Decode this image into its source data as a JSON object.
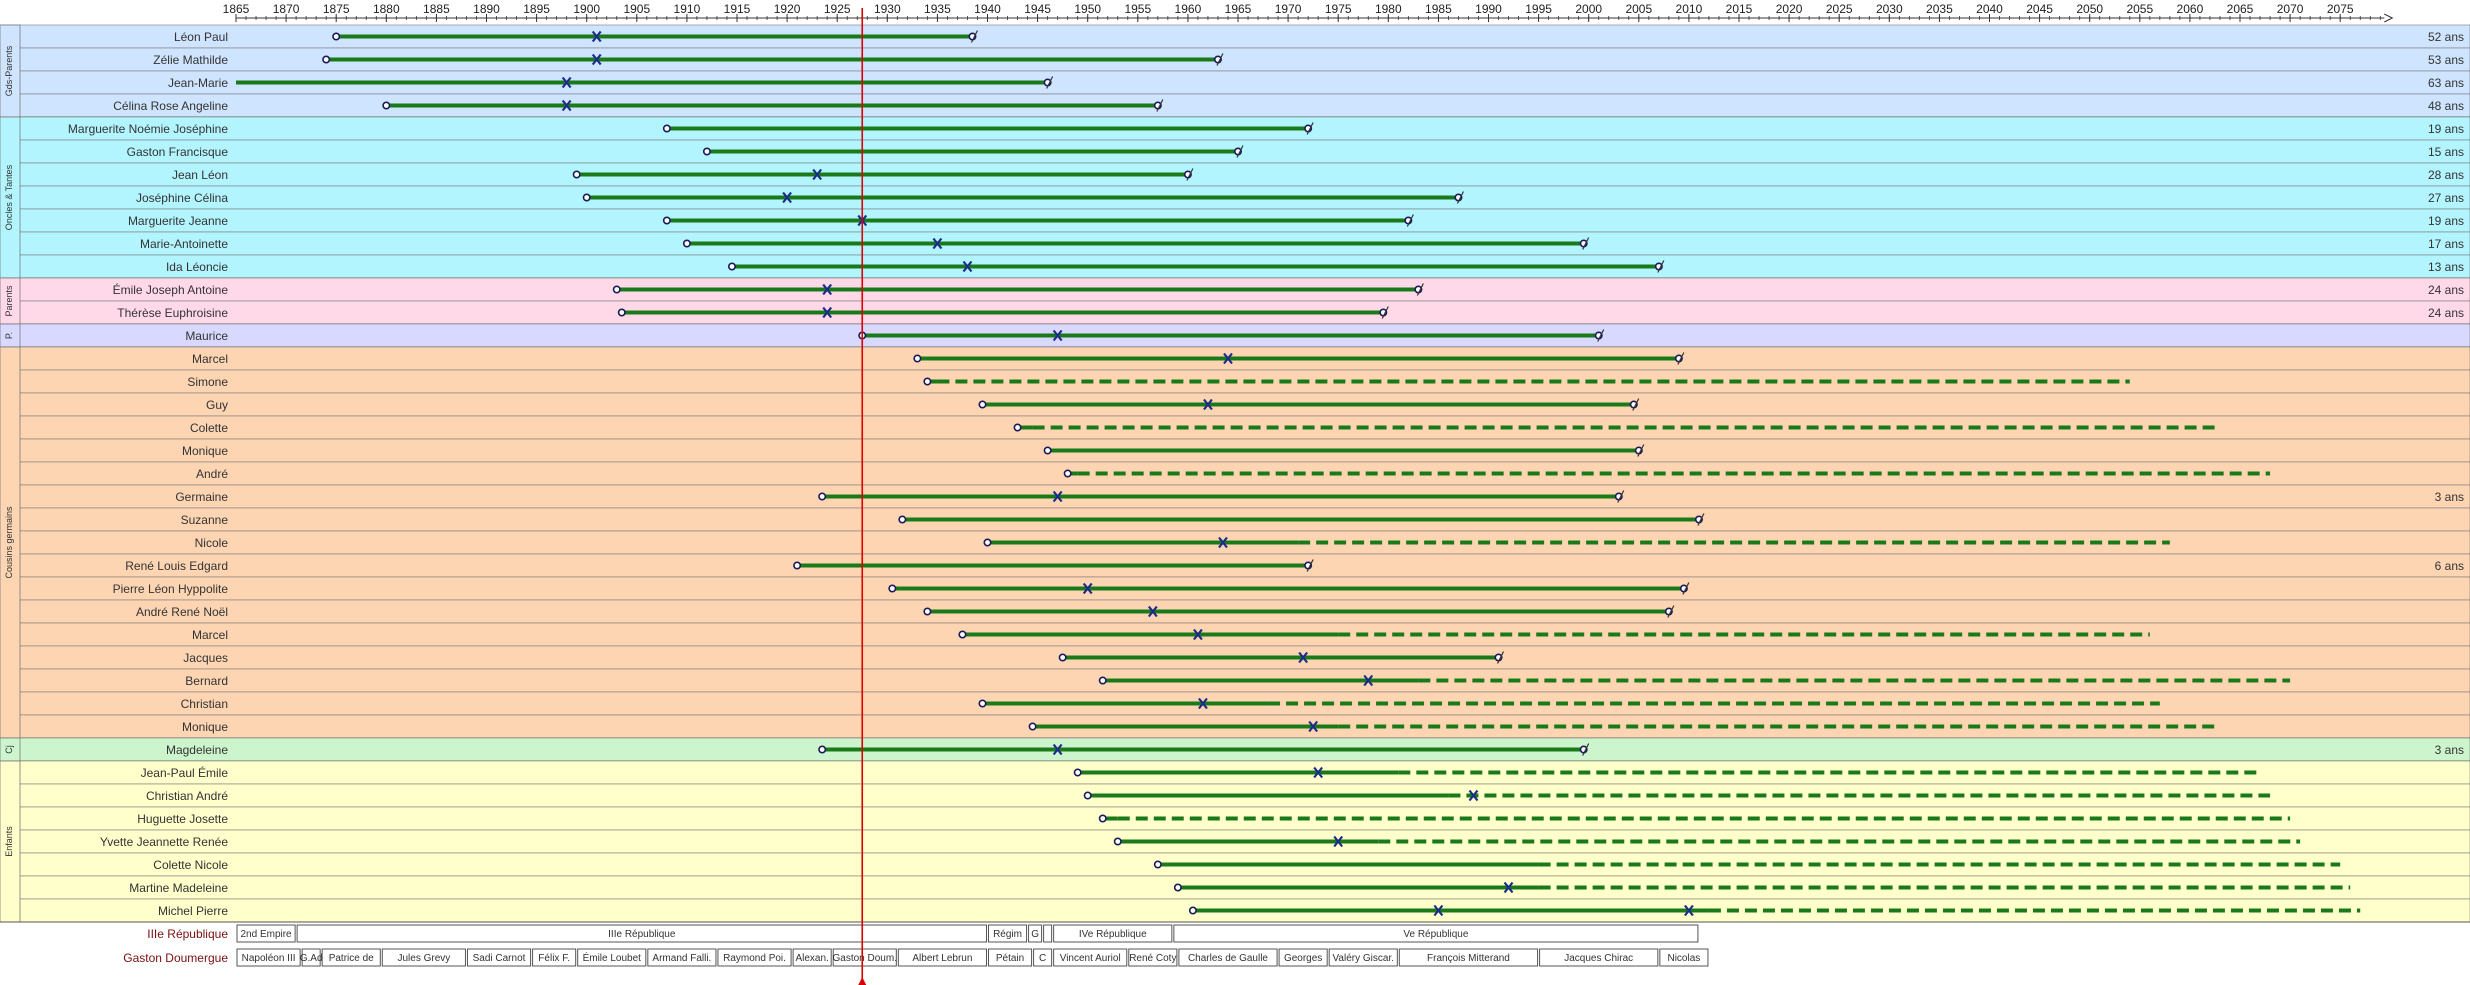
{
  "chart_data": {
    "type": "timeline",
    "x_axis": {
      "min": 1865,
      "max": 2079,
      "tick_step": 5,
      "tick_labels": [
        "1865",
        "1870",
        "1875",
        "1880",
        "1885",
        "1890",
        "1895",
        "1900",
        "1905",
        "1910",
        "1915",
        "1920",
        "1925",
        "1930",
        "1935",
        "1940",
        "1945",
        "1950",
        "1955",
        "1960",
        "1965",
        "1970",
        "1975",
        "1980",
        "1985",
        "1990",
        "1995",
        "2000",
        "2005",
        "2010",
        "2015",
        "2020",
        "2025",
        "2030",
        "2035",
        "2040",
        "2045",
        "2050",
        "2055",
        "2060",
        "2065",
        "2070",
        "2075"
      ]
    },
    "reference_year": 1927.5,
    "colors": {
      "line": "#1a7a1a",
      "reference": "#dd0000",
      "grands_parents": "#cfe4ff",
      "oncles_tantes": "#b3f5ff",
      "parents": "#ffd9e8",
      "p": "#d9d9ff",
      "cousins": "#fdd5b3",
      "cj": "#cdf5cd",
      "enfants": "#ffffcc"
    },
    "groups": [
      {
        "label": "Gds-Parents",
        "color": "grands_parents",
        "people": [
          {
            "name": "Léon Paul",
            "birth": 1875,
            "death": 1938.5,
            "cross": 1901,
            "age_label": "52 ans"
          },
          {
            "name": "Zélie Mathilde",
            "birth": 1874,
            "death": 1963,
            "cross": 1901,
            "age_label": "53 ans"
          },
          {
            "name": "Jean-Marie",
            "birth": 1865,
            "death": 1946,
            "cross": 1898,
            "age_label": "63 ans",
            "open_start": true
          },
          {
            "name": "Célina Rose Angeline",
            "birth": 1880,
            "death": 1957,
            "cross": 1898,
            "age_label": "48 ans"
          }
        ]
      },
      {
        "label": "Oncles & Tantes",
        "color": "oncles_tantes",
        "people": [
          {
            "name": "Marguerite Noémie Joséphine",
            "birth": 1908,
            "death": 1972,
            "age_label": "19 ans"
          },
          {
            "name": "Gaston Francisque",
            "birth": 1912,
            "death": 1965,
            "age_label": "15 ans"
          },
          {
            "name": "Jean Léon",
            "birth": 1899,
            "death": 1960,
            "cross": 1923,
            "age_label": "28 ans"
          },
          {
            "name": "Joséphine Célina",
            "birth": 1900,
            "death": 1987,
            "cross": 1920,
            "age_label": "27 ans"
          },
          {
            "name": "Marguerite Jeanne",
            "birth": 1908,
            "death": 1982,
            "cross": 1927.5,
            "age_label": "19 ans"
          },
          {
            "name": "Marie-Antoinette",
            "birth": 1910,
            "death": 1999.5,
            "cross": 1935,
            "age_label": "17 ans"
          },
          {
            "name": "Ida Léoncie",
            "birth": 1914.5,
            "death": 2007,
            "cross": 1938,
            "age_label": "13 ans"
          }
        ]
      },
      {
        "label": "Parents",
        "color": "parents",
        "people": [
          {
            "name": "Émile Joseph Antoine",
            "birth": 1903,
            "death": 1983,
            "cross": 1924,
            "age_label": "24 ans"
          },
          {
            "name": "Thérèse Euphroisine",
            "birth": 1903.5,
            "death": 1979.5,
            "cross": 1924,
            "age_label": "24 ans"
          }
        ]
      },
      {
        "label": "P.",
        "color": "p",
        "people": [
          {
            "name": "Maurice",
            "birth": 1927.5,
            "death": 2001,
            "cross": 1947
          }
        ]
      },
      {
        "label": "Cousins germains",
        "color": "cousins",
        "people": [
          {
            "name": "Marcel",
            "birth": 1933,
            "death": 2009,
            "cross": 1964
          },
          {
            "name": "Simone",
            "birth": 1934,
            "dash_start": 1935,
            "dash_end": 2054
          },
          {
            "name": "Guy",
            "birth": 1939.5,
            "death": 2004.5,
            "cross": 1962
          },
          {
            "name": "Colette",
            "birth": 1943,
            "dash_start": 1944.5,
            "dash_end": 2063
          },
          {
            "name": "Monique",
            "birth": 1946,
            "death": 2005
          },
          {
            "name": "André",
            "birth": 1948,
            "dash_start": 1949,
            "dash_end": 2068
          },
          {
            "name": "Germaine",
            "birth": 1923.5,
            "death": 2003,
            "cross": 1947,
            "age_label": "3 ans"
          },
          {
            "name": "Suzanne",
            "birth": 1931.5,
            "death": 2011
          },
          {
            "name": "Nicole",
            "birth": 1940,
            "solid_end": 1971,
            "cross": 1963.5,
            "dash_end": 2058
          },
          {
            "name": "René Louis Edgard",
            "birth": 1921,
            "death": 1972,
            "age_label": "6 ans"
          },
          {
            "name": "Pierre Léon Hyppolite",
            "birth": 1930.5,
            "death": 2009.5,
            "cross": 1950
          },
          {
            "name": "André René Noël",
            "birth": 1934,
            "death": 2008,
            "cross": 1956.5
          },
          {
            "name": "Marcel",
            "birth": 1937.5,
            "solid_end": 1975,
            "cross": 1961,
            "dash_end": 2056
          },
          {
            "name": "Jacques",
            "birth": 1947.5,
            "death": 1991,
            "cross": 1971.5
          },
          {
            "name": "Bernard",
            "birth": 1951.5,
            "solid_end": 1983,
            "cross": 1978,
            "dash_end": 2070
          },
          {
            "name": "Christian",
            "birth": 1939.5,
            "solid_end": 1968,
            "cross": 1961.5,
            "dash_end": 2057
          },
          {
            "name": "Monique",
            "birth": 1944.5,
            "solid_end": 1975,
            "cross": 1972.5,
            "dash_end": 2063
          }
        ]
      },
      {
        "label": "Cj",
        "color": "cj",
        "people": [
          {
            "name": "Magdeleine",
            "birth": 1923.5,
            "death": 1999.5,
            "cross": 1947,
            "age_label": "3 ans"
          }
        ]
      },
      {
        "label": "Enfants",
        "color": "enfants",
        "people": [
          {
            "name": "Jean-Paul Émile",
            "birth": 1949,
            "solid_end": 1981,
            "cross": 1973,
            "dash_end": 2067
          },
          {
            "name": "Christian André",
            "birth": 1950,
            "solid_end": 1986,
            "cross": 1988.5,
            "dash_end": 2068
          },
          {
            "name": "Huguette Josette",
            "birth": 1951.5,
            "solid_end": 1953,
            "dash_end": 2070
          },
          {
            "name": "Yvette Jeannette Renée",
            "birth": 1953,
            "solid_end": 1979,
            "cross": 1975,
            "dash_end": 2071
          },
          {
            "name": "Colette Nicole",
            "birth": 1957,
            "solid_end": 1995,
            "dash_end": 2075
          },
          {
            "name": "Martine Madeleine",
            "birth": 1959,
            "solid_end": 1995,
            "cross": 1992,
            "dash_end": 2076
          },
          {
            "name": "Michel Pierre",
            "birth": 1960.5,
            "solid_end": 2012,
            "cross": 1985,
            "cross2": 2010,
            "dash_end": 2077
          }
        ]
      }
    ],
    "regimes": {
      "label": "IIIe République",
      "items": [
        {
          "label": "2nd Empire",
          "start": 1865,
          "end": 1871
        },
        {
          "label": "IIIe République",
          "start": 1871,
          "end": 1940
        },
        {
          "label": "Régim",
          "start": 1940,
          "end": 1944
        },
        {
          "label": "G",
          "start": 1944,
          "end": 1945.5
        },
        {
          "label": "",
          "start": 1945.5,
          "end": 1946.5
        },
        {
          "label": "IVe République",
          "start": 1946.5,
          "end": 1958.5
        },
        {
          "label": "Ve République",
          "start": 1958.5,
          "end": 2011
        }
      ]
    },
    "presidents": {
      "label": "Gaston Doumergue",
      "items": [
        {
          "label": "Napoléon III",
          "start": 1865,
          "end": 1871.5
        },
        {
          "label": "G.Ad",
          "start": 1871.5,
          "end": 1873.5
        },
        {
          "label": "Patrice de",
          "start": 1873.5,
          "end": 1879.5
        },
        {
          "label": "Jules Grevy",
          "start": 1879.5,
          "end": 1888
        },
        {
          "label": "Sadi Carnot",
          "start": 1888,
          "end": 1894.5
        },
        {
          "label": "Félix F.",
          "start": 1894.5,
          "end": 1899
        },
        {
          "label": "Émile Loubet",
          "start": 1899,
          "end": 1906
        },
        {
          "label": "Armand Falli.",
          "start": 1906,
          "end": 1913
        },
        {
          "label": "Raymond Poi.",
          "start": 1913,
          "end": 1920.5
        },
        {
          "label": "Alexan.",
          "start": 1920.5,
          "end": 1924.5
        },
        {
          "label": "Gaston Doum.",
          "start": 1924.5,
          "end": 1931
        },
        {
          "label": "Albert Lebrun",
          "start": 1931,
          "end": 1940
        },
        {
          "label": "Pétain",
          "start": 1940,
          "end": 1944.5
        },
        {
          "label": "C",
          "start": 1944.5,
          "end": 1946.5
        },
        {
          "label": "Vincent Auriol",
          "start": 1946.5,
          "end": 1954
        },
        {
          "label": "René Coty",
          "start": 1954,
          "end": 1959
        },
        {
          "label": "Charles de Gaulle",
          "start": 1959,
          "end": 1969
        },
        {
          "label": "Georges",
          "start": 1969,
          "end": 1974
        },
        {
          "label": "Valéry Giscar.",
          "start": 1974,
          "end": 1981
        },
        {
          "label": "François Mitterand",
          "start": 1981,
          "end": 1995
        },
        {
          "label": "Jacques Chirac",
          "start": 1995,
          "end": 2007
        },
        {
          "label": "Nicolas",
          "start": 2007,
          "end": 2012
        }
      ]
    }
  }
}
